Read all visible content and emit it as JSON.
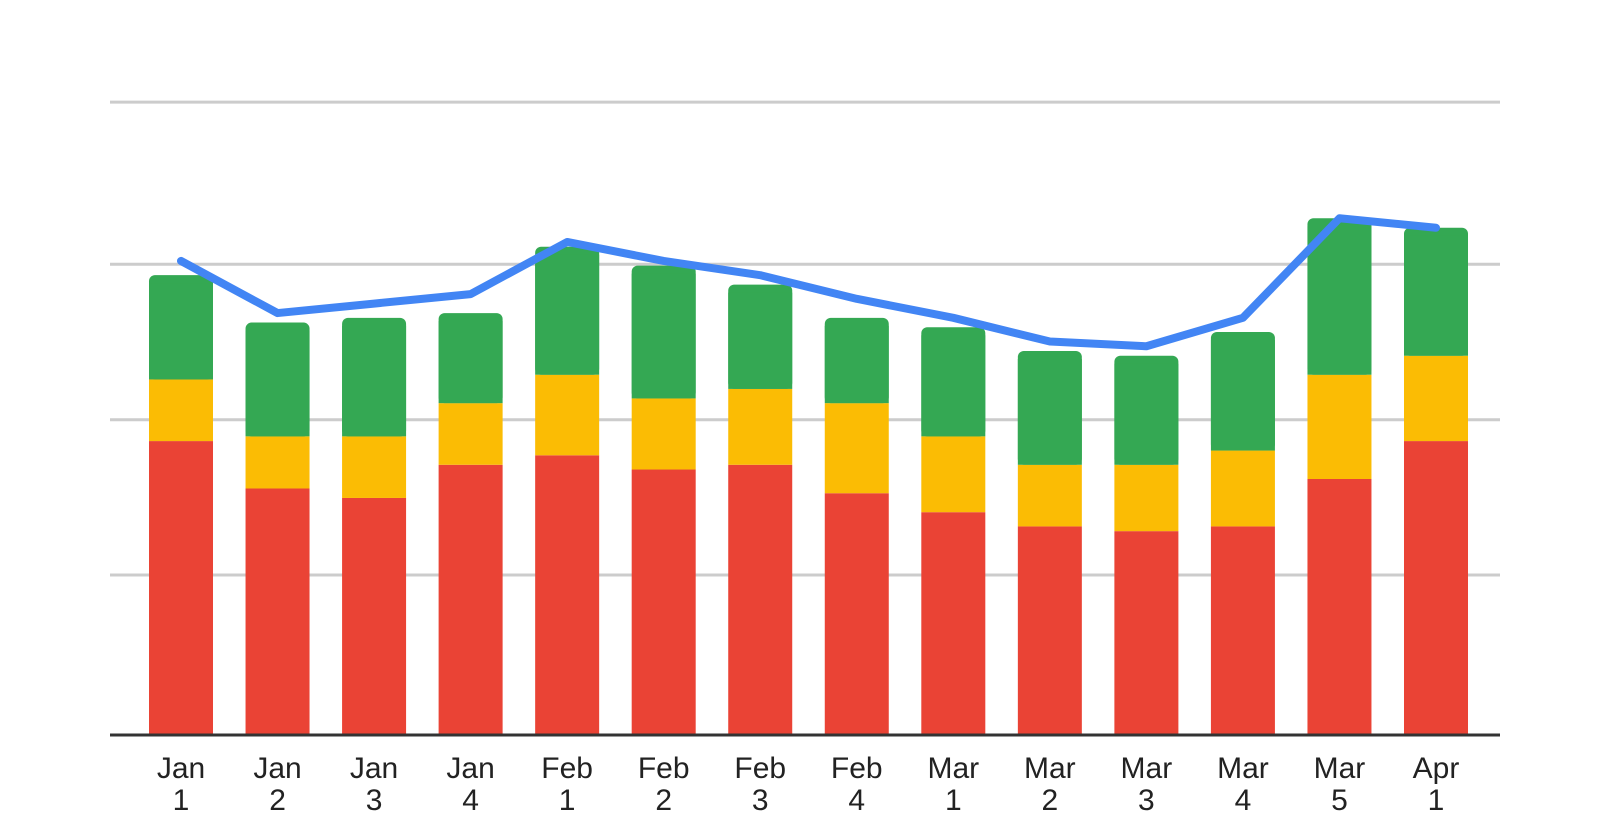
{
  "chart_data": {
    "type": "bar",
    "stacked": true,
    "categories": [
      [
        "Jan",
        "1"
      ],
      [
        "Jan",
        "2"
      ],
      [
        "Jan",
        "3"
      ],
      [
        "Jan",
        "4"
      ],
      [
        "Feb",
        "1"
      ],
      [
        "Feb",
        "2"
      ],
      [
        "Feb",
        "3"
      ],
      [
        "Feb",
        "4"
      ],
      [
        "Mar",
        "1"
      ],
      [
        "Mar",
        "2"
      ],
      [
        "Mar",
        "3"
      ],
      [
        "Mar",
        "4"
      ],
      [
        "Mar",
        "5"
      ],
      [
        "Apr",
        "1"
      ]
    ],
    "series": [
      {
        "color": "#ea4335",
        "values": [
          62,
          52,
          50,
          57,
          59,
          56,
          57,
          51,
          47,
          44,
          43,
          44,
          54,
          62
        ]
      },
      {
        "color": "#fbbc04",
        "values": [
          13,
          11,
          13,
          13,
          17,
          15,
          16,
          19,
          16,
          13,
          14,
          16,
          22,
          18
        ]
      },
      {
        "color": "#34a853",
        "values": [
          22,
          24,
          25,
          19,
          27,
          28,
          22,
          18,
          23,
          24,
          23,
          25,
          33,
          27
        ]
      }
    ],
    "line": {
      "color": "#4285f4",
      "values": [
        100,
        89,
        91,
        93,
        104,
        100,
        97,
        92,
        88,
        83,
        82,
        88,
        109,
        107
      ]
    },
    "ylim": [
      0,
      135
    ],
    "gridlines": [
      33.75,
      66.5,
      99.3,
      133.5
    ],
    "grid": true,
    "legend": "none",
    "title": "",
    "xlabel": "",
    "ylabel": ""
  }
}
